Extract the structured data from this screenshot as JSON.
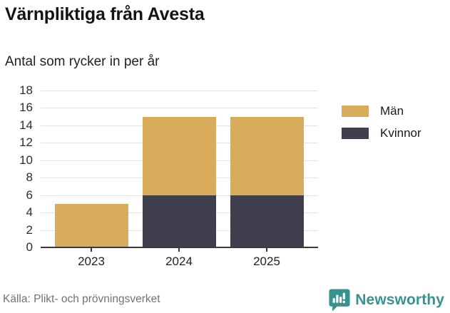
{
  "header": {
    "title": "Värnpliktiga från Avesta",
    "subtitle": "Antal som rycker in per år"
  },
  "footer": {
    "source": "Källa: Plikt- och prövningsverket",
    "brand": "Newsworthy"
  },
  "colors": {
    "man": "#d9ac5c",
    "kvinnor": "#3f3e4e",
    "grid": "#e2e2e5",
    "axis": "#3a3a3e",
    "brand_teal": "#38938f",
    "source_text": "#71717b"
  },
  "chart_data": {
    "type": "bar",
    "stacked": true,
    "title": "Värnpliktiga från Avesta",
    "subtitle": "Antal som rycker in per år",
    "categories": [
      "2023",
      "2024",
      "2025"
    ],
    "series": [
      {
        "name": "Kvinnor",
        "color": "#3f3e4e",
        "values": [
          0,
          6,
          6
        ]
      },
      {
        "name": "Män",
        "color": "#d9ac5c",
        "values": [
          5,
          9,
          9
        ]
      }
    ],
    "totals": [
      5,
      15,
      15
    ],
    "legend": [
      {
        "label": "Män",
        "color": "#d9ac5c"
      },
      {
        "label": "Kvinnor",
        "color": "#3f3e4e"
      }
    ],
    "legend_position": "right",
    "xlabel": "",
    "ylabel": "",
    "ylim": [
      0,
      18
    ],
    "ytick_step": 2,
    "grid": true
  }
}
